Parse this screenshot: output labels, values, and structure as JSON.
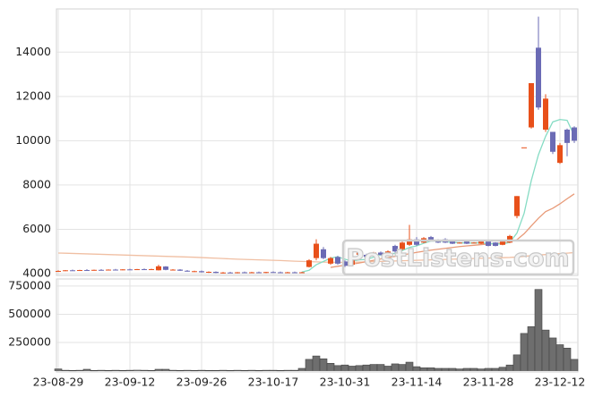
{
  "chart_data": {
    "type": "candlestick",
    "watermark": "PostListens.com",
    "categories": [
      "23-08-29",
      null,
      null,
      null,
      null,
      null,
      null,
      null,
      null,
      null,
      "23-09-12",
      null,
      null,
      null,
      null,
      null,
      null,
      null,
      null,
      null,
      "23-09-26",
      null,
      null,
      null,
      null,
      null,
      null,
      null,
      null,
      null,
      "23-10-17",
      null,
      null,
      null,
      null,
      null,
      null,
      null,
      null,
      null,
      "23-10-31",
      null,
      null,
      null,
      null,
      null,
      null,
      null,
      null,
      null,
      "23-11-14",
      null,
      null,
      null,
      null,
      null,
      null,
      null,
      null,
      null,
      "23-11-28",
      null,
      null,
      null,
      null,
      null,
      null,
      null,
      null,
      null,
      "23-12-12",
      null,
      null
    ],
    "open": [
      4100,
      4130,
      4150,
      4140,
      4160,
      4150,
      4170,
      4160,
      4180,
      4170,
      4190,
      4180,
      4200,
      4190,
      4150,
      4320,
      4170,
      4180,
      4130,
      4100,
      4110,
      4060,
      4080,
      4030,
      4050,
      4040,
      4060,
      4050,
      4060,
      4040,
      4070,
      4060,
      4050,
      4060,
      4050,
      4300,
      4700,
      5100,
      4450,
      4750,
      4550,
      4400,
      4850,
      4850,
      4800,
      4950,
      4900,
      5250,
      5100,
      5300,
      5550,
      5400,
      5650,
      5450,
      5550,
      5500,
      5380,
      5450,
      5380,
      5350,
      5500,
      5400,
      5300,
      5400,
      6600,
      9700,
      10600,
      14200,
      10500,
      10400,
      9000,
      10500,
      10600
    ],
    "high": [
      4150,
      4160,
      4180,
      4170,
      4200,
      4180,
      4200,
      4190,
      4210,
      4200,
      4220,
      4210,
      4230,
      4220,
      4400,
      4340,
      4200,
      4200,
      4160,
      4130,
      4140,
      4100,
      4100,
      4070,
      4080,
      4070,
      4090,
      4080,
      4090,
      4080,
      4100,
      4090,
      4080,
      4090,
      4080,
      4650,
      5550,
      5200,
      4750,
      4800,
      4600,
      4750,
      5100,
      4900,
      4980,
      5000,
      5050,
      5300,
      5450,
      6200,
      5650,
      5650,
      5700,
      5550,
      5600,
      5520,
      5420,
      5480,
      5420,
      5480,
      5520,
      5420,
      5480,
      5750,
      7500,
      9700,
      12600,
      15600,
      12100,
      10400,
      9900,
      10550,
      10650
    ],
    "low": [
      4080,
      4110,
      4130,
      4120,
      4140,
      4130,
      4150,
      4140,
      4160,
      4150,
      4170,
      4160,
      4180,
      4170,
      4140,
      4150,
      4150,
      4120,
      4090,
      4070,
      4050,
      4030,
      4020,
      4000,
      4020,
      4010,
      4030,
      4020,
      4030,
      4020,
      4040,
      4030,
      4020,
      4030,
      4030,
      4280,
      4600,
      4650,
      4400,
      4400,
      4300,
      4380,
      4800,
      4700,
      4780,
      4820,
      4880,
      4950,
      5050,
      5250,
      5250,
      5380,
      5480,
      5380,
      5380,
      5330,
      5360,
      5330,
      5370,
      5330,
      5230,
      5230,
      5280,
      5380,
      6500,
      9700,
      10550,
      11400,
      10400,
      9400,
      8950,
      9300,
      9900
    ],
    "close": [
      4120,
      4150,
      4140,
      4160,
      4150,
      4170,
      4160,
      4180,
      4170,
      4190,
      4180,
      4200,
      4190,
      4200,
      4330,
      4170,
      4180,
      4130,
      4100,
      4110,
      4060,
      4080,
      4030,
      4050,
      4040,
      4060,
      4050,
      4060,
      4040,
      4070,
      4060,
      4050,
      4060,
      4050,
      4060,
      4600,
      5350,
      4700,
      4700,
      4450,
      4350,
      4700,
      4950,
      4750,
      4950,
      4850,
      5000,
      5000,
      5400,
      5550,
      5300,
      5600,
      5500,
      5400,
      5400,
      5350,
      5400,
      5350,
      5400,
      5450,
      5250,
      5250,
      5450,
      5700,
      7500,
      9700,
      12600,
      11500,
      11900,
      9500,
      9800,
      9900,
      10000
    ],
    "volume": [
      15000,
      3000,
      2000,
      3000,
      12000,
      2000,
      3000,
      2000,
      3000,
      2000,
      3000,
      4000,
      3000,
      2000,
      12000,
      12000,
      3000,
      2000,
      3000,
      2000,
      3000,
      2000,
      2000,
      3000,
      2000,
      3000,
      2000,
      3000,
      2000,
      3000,
      3000,
      2000,
      3000,
      3000,
      20000,
      100000,
      130000,
      105000,
      65000,
      45000,
      50000,
      40000,
      45000,
      50000,
      55000,
      55000,
      40000,
      60000,
      55000,
      75000,
      35000,
      25000,
      25000,
      20000,
      20000,
      20000,
      15000,
      20000,
      20000,
      15000,
      20000,
      20000,
      30000,
      50000,
      140000,
      330000,
      390000,
      720000,
      360000,
      290000,
      230000,
      200000,
      100000
    ],
    "up_color": "#e8501a",
    "down_color": "#6b6bb5",
    "volume_color": "#6e6e6e",
    "lines": [
      {
        "color": "#f0bfa3",
        "values": [
          4930,
          4920,
          4910,
          4900,
          4890,
          4880,
          4870,
          4860,
          4850,
          4840,
          4830,
          4820,
          4810,
          4800,
          4790,
          4780,
          4770,
          4760,
          4750,
          4740,
          4725,
          4710,
          4695,
          4680,
          4665,
          4650,
          4640,
          4630,
          4620,
          4610,
          4600,
          4590,
          4575,
          4560,
          4550,
          4540,
          4530,
          4520,
          4515,
          4510,
          4505,
          4510,
          4520,
          4530,
          4540,
          4550,
          4560,
          4570,
          4580,
          4590,
          4600,
          4610,
          4620,
          4630,
          4640,
          4650,
          4660,
          4670,
          4680,
          4690,
          4700,
          4710,
          4720,
          4730,
          4750,
          4780,
          4810,
          4840,
          4860,
          4880,
          4900,
          4925,
          4950
        ]
      },
      {
        "color": "#e89a78",
        "values": [
          null,
          null,
          null,
          null,
          null,
          null,
          null,
          null,
          null,
          null,
          null,
          null,
          null,
          null,
          null,
          null,
          null,
          null,
          null,
          null,
          null,
          null,
          null,
          null,
          null,
          null,
          null,
          null,
          null,
          null,
          null,
          null,
          null,
          null,
          null,
          null,
          null,
          null,
          4280,
          4330,
          4380,
          4430,
          4480,
          4540,
          4600,
          4660,
          4720,
          4780,
          4840,
          4900,
          4960,
          5010,
          5060,
          5100,
          5140,
          5180,
          5220,
          5250,
          5280,
          5310,
          5340,
          5360,
          5380,
          5420,
          5530,
          5800,
          6150,
          6500,
          6800,
          6950,
          7150,
          7380,
          7600
        ]
      },
      {
        "color": "#86dcc4",
        "values": [
          null,
          null,
          null,
          null,
          null,
          null,
          null,
          null,
          null,
          null,
          null,
          null,
          null,
          null,
          null,
          null,
          null,
          null,
          null,
          null,
          null,
          null,
          null,
          null,
          null,
          null,
          null,
          null,
          null,
          null,
          null,
          null,
          null,
          null,
          4070,
          4150,
          4400,
          4550,
          4700,
          4760,
          4650,
          4560,
          4620,
          4640,
          4740,
          4850,
          4900,
          4910,
          5040,
          5180,
          5250,
          5370,
          5470,
          5470,
          5440,
          5410,
          5390,
          5380,
          5380,
          5390,
          5360,
          5340,
          5340,
          5410,
          5830,
          6720,
          8200,
          9370,
          10200,
          10850,
          10960,
          10920,
          10220
        ]
      }
    ],
    "ylim": [
      4000,
      15950
    ],
    "yticks": [
      4000,
      6000,
      8000,
      10000,
      12000,
      14000
    ],
    "volume_ylim": [
      0,
      805000
    ],
    "volume_yticks": [
      250000,
      500000,
      750000
    ],
    "grid": true
  }
}
